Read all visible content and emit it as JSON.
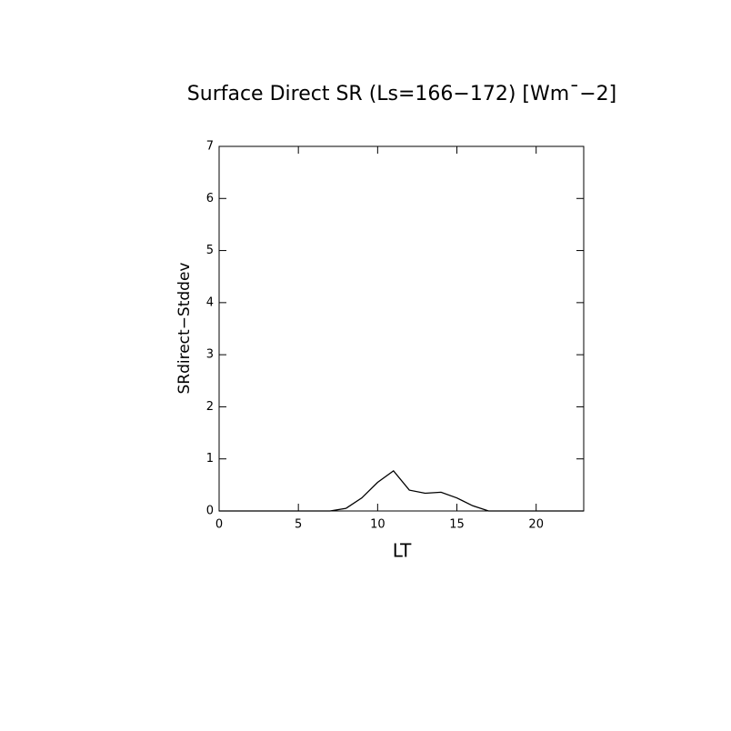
{
  "chart_data": {
    "type": "line",
    "title": "Surface Direct SR (Ls=166−172) [Wm¯−2]",
    "xlabel": "LT",
    "ylabel": "SRdirect−Stddev",
    "x": [
      0,
      1,
      2,
      3,
      4,
      5,
      6,
      7,
      8,
      9,
      10,
      11,
      12,
      13,
      14,
      15,
      16,
      17,
      18,
      19,
      20,
      21,
      22,
      23
    ],
    "series": [
      {
        "name": "SRdirect-Stddev",
        "color": "#000000",
        "values": [
          0,
          0,
          0,
          0,
          0,
          0,
          0,
          0,
          0.05,
          0.25,
          0.55,
          0.77,
          0.4,
          0.34,
          0.36,
          0.25,
          0.1,
          0,
          0,
          0,
          0,
          0,
          0,
          0
        ]
      }
    ],
    "xlim": [
      0,
      23
    ],
    "xticks": [
      0,
      5,
      10,
      15,
      20
    ],
    "ylim": [
      0,
      7
    ],
    "yticks": [
      0,
      1,
      2,
      3,
      4,
      5,
      6,
      7
    ],
    "grid": false
  }
}
